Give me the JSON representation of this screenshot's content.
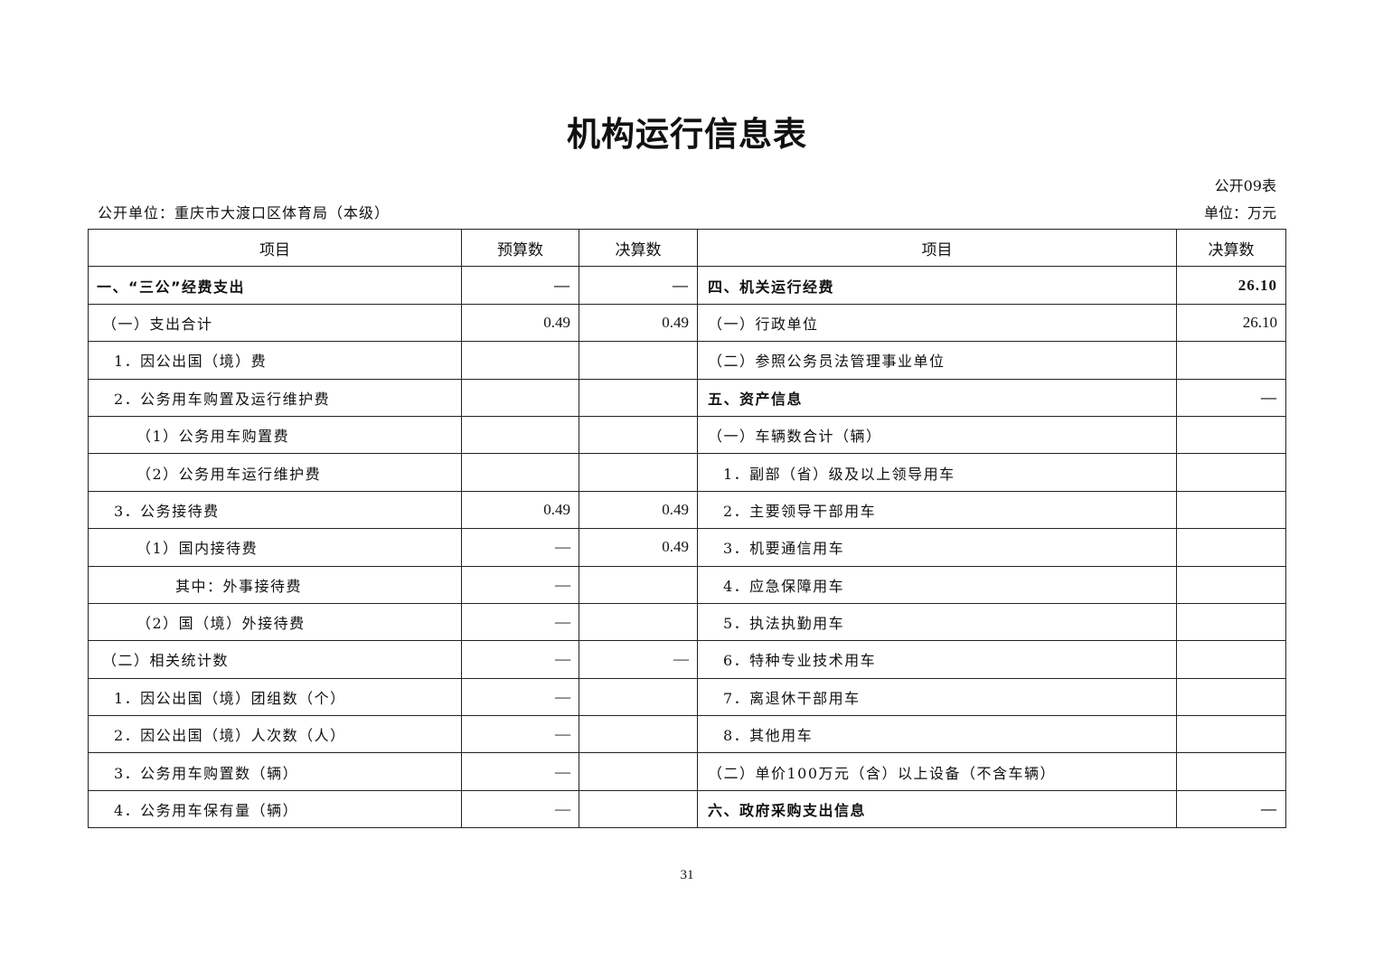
{
  "title": "机构运行信息表",
  "form_no": "公开09表",
  "unit_name": "公开单位：重庆市大渡口区体育局（本级）",
  "unit": "单位：万元",
  "headers": [
    "项目",
    "预算数",
    "决算数",
    "项目",
    "决算数"
  ],
  "rows": [
    {
      "l": "一、“三公”经费支出",
      "b": "—",
      "f": "—",
      "r": "四、机关运行经费",
      "v": "26.10"
    },
    {
      "l": "（一）支出合计",
      "b": "0.49",
      "f": "0.49",
      "r": "（一）行政单位",
      "v": "26.10"
    },
    {
      "l": "1．因公出国（境）费",
      "b": "",
      "f": "",
      "r": "（二）参照公务员法管理事业单位",
      "v": ""
    },
    {
      "l": "2．公务用车购置及运行维护费",
      "b": "",
      "f": "",
      "r": "五、资产信息",
      "v": "—"
    },
    {
      "l": "（1）公务用车购置费",
      "b": "",
      "f": "",
      "r": "（一）车辆数合计（辆）",
      "v": ""
    },
    {
      "l": "（2）公务用车运行维护费",
      "b": "",
      "f": "",
      "r": "1．副部（省）级及以上领导用车",
      "v": ""
    },
    {
      "l": "3．公务接待费",
      "b": "0.49",
      "f": "0.49",
      "r": "2．主要领导干部用车",
      "v": ""
    },
    {
      "l": "（1）国内接待费",
      "b": "—",
      "f": "0.49",
      "r": "3．机要通信用车",
      "v": ""
    },
    {
      "l": "其中：外事接待费",
      "b": "—",
      "f": "",
      "r": "4．应急保障用车",
      "v": ""
    },
    {
      "l": "（2）国（境）外接待费",
      "b": "—",
      "f": "",
      "r": "5．执法执勤用车",
      "v": ""
    },
    {
      "l": "（二）相关统计数",
      "b": "—",
      "f": "—",
      "r": "6．特种专业技术用车",
      "v": ""
    },
    {
      "l": "1．因公出国（境）团组数（个）",
      "b": "—",
      "f": "",
      "r": "7．离退休干部用车",
      "v": ""
    },
    {
      "l": "2．因公出国（境）人次数（人）",
      "b": "—",
      "f": "",
      "r": "8．其他用车",
      "v": ""
    },
    {
      "l": "3．公务用车购置数（辆）",
      "b": "—",
      "f": "",
      "r": "（二）单价100万元（含）以上设备（不含车辆）",
      "v": ""
    },
    {
      "l": "4．公务用车保有量（辆）",
      "b": "—",
      "f": "",
      "r": "六、政府采购支出信息",
      "v": "—"
    }
  ],
  "page_number": "31"
}
